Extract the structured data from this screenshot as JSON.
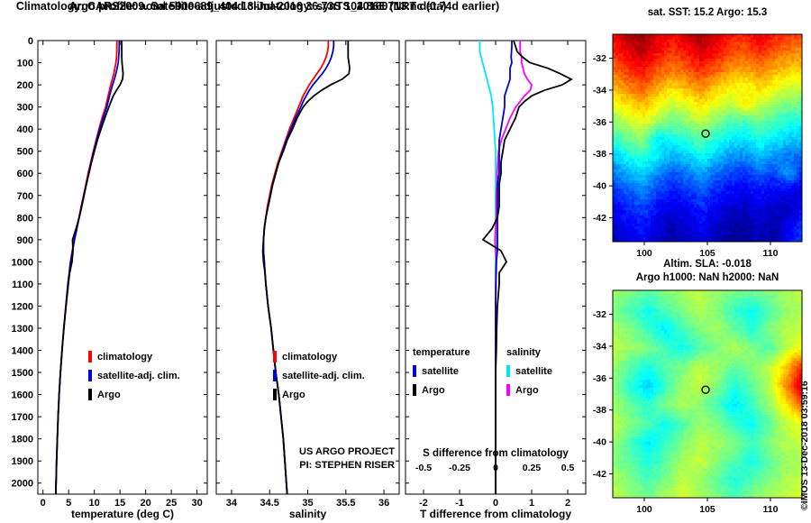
{
  "header": {
    "title_line1": "Argo profile: aoml 5900689_404 13-Jul-2016 36.73S 104.86E (NRT data)",
    "title_line2": "Climatology: CARS2009. Satellite-adjusted climatology: synTS_20160713.nc (0.74d earlier)"
  },
  "footer": {
    "copyright": "©IMOS 13-Dec-2018 03:59:16"
  },
  "chart_data": [
    {
      "id": "temperature_profile",
      "type": "line",
      "xlabel": "temperature (deg C)",
      "xlim": [
        -1,
        32
      ],
      "xticks": [
        0,
        5,
        10,
        15,
        20,
        25,
        30
      ],
      "ylim": [
        0,
        2050
      ],
      "yticks": [
        0,
        100,
        200,
        300,
        400,
        500,
        600,
        700,
        800,
        900,
        1000,
        1100,
        1200,
        1300,
        1400,
        1500,
        1600,
        1700,
        1800,
        1900,
        2000
      ],
      "show_ylabels": true,
      "depths": [
        0,
        25,
        50,
        75,
        100,
        125,
        150,
        175,
        200,
        225,
        250,
        275,
        300,
        350,
        400,
        450,
        500,
        550,
        600,
        650,
        700,
        750,
        800,
        850,
        900,
        950,
        1000,
        1050,
        1100,
        1200,
        1300,
        1400,
        1500,
        1600,
        1700,
        1800,
        1900,
        2000,
        2050
      ],
      "series": [
        {
          "name": "climatology",
          "color": "#ff0000",
          "values": [
            14.4,
            14.4,
            14.38,
            14.32,
            14.2,
            14.0,
            13.8,
            13.5,
            13.2,
            12.95,
            12.7,
            12.45,
            12.2,
            11.5,
            10.9,
            10.35,
            9.8,
            9.3,
            8.8,
            8.35,
            7.9,
            7.45,
            7.0,
            6.55,
            6.1,
            5.7,
            5.35,
            5.1,
            4.85,
            4.45,
            4.05,
            3.7,
            3.4,
            3.15,
            2.95,
            2.8,
            2.65,
            2.55,
            2.5
          ]
        },
        {
          "name": "satellite-adj. clim.",
          "color": "#0000dd",
          "values": [
            14.85,
            14.85,
            14.82,
            14.75,
            14.65,
            14.45,
            14.2,
            13.9,
            13.55,
            13.25,
            12.95,
            12.7,
            12.45,
            11.7,
            11.05,
            10.45,
            9.9,
            9.4,
            8.9,
            8.45,
            7.95,
            7.5,
            7.05,
            6.6,
            6.15,
            5.75,
            5.38,
            5.12,
            4.87,
            4.46,
            4.06,
            3.71,
            3.4,
            3.15,
            2.95,
            2.8,
            2.65,
            2.55,
            2.5
          ]
        },
        {
          "name": "Argo",
          "color": "#000000",
          "values": [
            15.3,
            15.35,
            15.35,
            15.35,
            15.4,
            15.5,
            15.6,
            15.5,
            15.0,
            14.3,
            13.7,
            13.25,
            12.85,
            12.05,
            11.3,
            10.6,
            10.0,
            9.45,
            8.95,
            8.45,
            8.0,
            7.55,
            7.05,
            6.45,
            5.75,
            5.85,
            5.65,
            5.2,
            4.95,
            4.5,
            4.08,
            3.72,
            3.4,
            3.15,
            2.95,
            2.8,
            2.65,
            2.55,
            2.5
          ]
        }
      ],
      "legend": [
        "climatology",
        "satellite-adj. clim.",
        "Argo"
      ]
    },
    {
      "id": "salinity_profile",
      "type": "line",
      "xlabel": "salinity",
      "xlim": [
        33.8,
        36.2
      ],
      "xticks": [
        34,
        34.5,
        35,
        35.5,
        36
      ],
      "ylim": [
        0,
        2050
      ],
      "yticks": [
        0,
        100,
        200,
        300,
        400,
        500,
        600,
        700,
        800,
        900,
        1000,
        1100,
        1200,
        1300,
        1400,
        1500,
        1600,
        1700,
        1800,
        1900,
        2000
      ],
      "show_ylabels": false,
      "note1": "US ARGO PROJECT",
      "note2": "PI: STEPHEN RISER",
      "depths": [
        0,
        25,
        50,
        75,
        100,
        125,
        150,
        175,
        200,
        225,
        250,
        275,
        300,
        350,
        400,
        450,
        500,
        550,
        600,
        650,
        700,
        750,
        800,
        850,
        900,
        950,
        1000,
        1050,
        1100,
        1200,
        1300,
        1400,
        1500,
        1600,
        1700,
        1800,
        1900,
        2000,
        2050
      ],
      "series": [
        {
          "name": "climatology",
          "color": "#ff0000",
          "values": [
            35.27,
            35.27,
            35.26,
            35.24,
            35.21,
            35.17,
            35.12,
            35.07,
            35.02,
            34.98,
            34.94,
            34.91,
            34.88,
            34.82,
            34.76,
            34.71,
            34.66,
            34.61,
            34.57,
            34.53,
            34.5,
            34.47,
            34.45,
            34.43,
            34.42,
            34.42,
            34.43,
            34.44,
            34.45,
            34.48,
            34.52,
            34.55,
            34.58,
            34.62,
            34.65,
            34.68,
            34.7,
            34.72,
            34.73
          ]
        },
        {
          "name": "satellite-adj. clim.",
          "color": "#0000dd",
          "values": [
            35.34,
            35.34,
            35.33,
            35.31,
            35.28,
            35.24,
            35.19,
            35.13,
            35.07,
            35.02,
            34.98,
            34.94,
            34.91,
            34.84,
            34.78,
            34.72,
            34.67,
            34.62,
            34.58,
            34.54,
            34.51,
            34.48,
            34.45,
            34.43,
            34.42,
            34.42,
            34.43,
            34.44,
            34.45,
            34.48,
            34.52,
            34.55,
            34.58,
            34.62,
            34.65,
            34.68,
            34.7,
            34.72,
            34.73
          ]
        },
        {
          "name": "Argo",
          "color": "#000000",
          "values": [
            35.53,
            35.53,
            35.53,
            35.53,
            35.54,
            35.55,
            35.54,
            35.45,
            35.3,
            35.18,
            35.08,
            35.0,
            34.94,
            34.86,
            34.8,
            34.73,
            34.68,
            34.62,
            34.58,
            34.54,
            34.51,
            34.48,
            34.45,
            34.43,
            34.42,
            34.41,
            34.42,
            34.44,
            34.45,
            34.48,
            34.52,
            34.55,
            34.58,
            34.62,
            34.65,
            34.68,
            34.7,
            34.72,
            34.73
          ]
        }
      ],
      "legend": [
        "climatology",
        "satellite-adj. clim.",
        "Argo"
      ]
    },
    {
      "id": "difference_profile",
      "type": "line",
      "xlabel": "T difference from climatology",
      "xlim": [
        -2.5,
        2.5
      ],
      "xticks": [
        -2,
        -1,
        0,
        1,
        2
      ],
      "ylim": [
        0,
        2050
      ],
      "yticks": [
        0,
        100,
        200,
        300,
        400,
        500,
        600,
        700,
        800,
        900,
        1000,
        1100,
        1200,
        1300,
        1400,
        1500,
        1600,
        1700,
        1800,
        1900,
        2000
      ],
      "show_ylabels": false,
      "secondary": {
        "label": "S difference from climatology",
        "ticks": [
          -0.5,
          -0.25,
          0,
          0.25,
          0.5
        ],
        "scale": 4
      },
      "depths": [
        0,
        25,
        50,
        75,
        100,
        125,
        150,
        175,
        200,
        225,
        250,
        275,
        300,
        350,
        400,
        450,
        500,
        550,
        600,
        650,
        700,
        750,
        800,
        850,
        900,
        950,
        1000,
        1050,
        1100,
        1200,
        1300,
        1400,
        1500,
        1600,
        1700,
        1800,
        1900,
        2000,
        2050
      ],
      "series": [
        {
          "name": "salinity satellite",
          "color": "#00e5ff",
          "xscale": 4,
          "values": [
            -0.11,
            -0.11,
            -0.11,
            -0.1,
            -0.09,
            -0.08,
            -0.07,
            -0.06,
            -0.05,
            -0.04,
            -0.03,
            -0.025,
            -0.02,
            -0.015,
            -0.01,
            -0.005,
            0,
            0,
            0,
            0,
            0,
            0,
            0,
            0,
            0,
            0,
            0,
            0,
            0,
            0,
            0,
            0,
            0,
            0,
            0,
            0,
            0,
            0,
            0
          ]
        },
        {
          "name": "salinity Argo",
          "color": "#ff00ff",
          "xscale": 4,
          "values": [
            0.17,
            0.17,
            0.17,
            0.18,
            0.18,
            0.19,
            0.2,
            0.22,
            0.25,
            0.24,
            0.2,
            0.17,
            0.14,
            0.1,
            0.07,
            0.04,
            0.02,
            0.015,
            0.01,
            0.01,
            0.005,
            0.005,
            0.005,
            0,
            -0.005,
            0,
            0.005,
            0.005,
            0,
            0,
            0,
            0,
            0,
            0,
            0,
            0,
            0,
            0,
            0
          ]
        },
        {
          "name": "temperature satellite",
          "color": "#0000dd",
          "xscale": 1,
          "values": [
            0.45,
            0.45,
            0.44,
            0.43,
            0.45,
            0.4,
            0.4,
            0.4,
            0.35,
            0.3,
            0.25,
            0.25,
            0.25,
            0.2,
            0.15,
            0.1,
            0.1,
            0.1,
            0.1,
            0.05,
            0.05,
            0.05,
            0.05,
            0.05,
            0.05,
            0.05,
            0.02,
            0.01,
            0.01,
            0,
            0,
            0,
            0,
            0,
            0,
            0,
            0,
            0,
            0
          ]
        },
        {
          "name": "temperature Argo",
          "color": "#000000",
          "xscale": 1,
          "values": [
            0.5,
            0.55,
            0.6,
            0.75,
            0.95,
            1.45,
            1.8,
            2.1,
            1.85,
            1.35,
            1.0,
            0.8,
            0.65,
            0.55,
            0.4,
            0.25,
            0.2,
            0.15,
            0.15,
            0.1,
            0.1,
            0.1,
            0.05,
            -0.1,
            -0.35,
            0.15,
            0.3,
            0.1,
            0.1,
            0.05,
            0.03,
            0.02,
            0,
            0,
            0,
            0,
            0,
            0,
            0
          ]
        }
      ],
      "legend": {
        "col1": {
          "header": "temperature",
          "items": [
            "satellite",
            "Argo"
          ]
        },
        "col2": {
          "header": "salinity",
          "items": [
            "satellite",
            "Argo"
          ]
        }
      }
    },
    {
      "id": "sst_map",
      "type": "heatmap",
      "title": "sat. SST: 15.2 Argo: 15.3",
      "xlim": [
        97.5,
        112.5
      ],
      "xticks": [
        100,
        105,
        110
      ],
      "ylim": [
        -30.5,
        -43.5
      ],
      "yticks": [
        -32,
        -34,
        -36,
        -38,
        -40,
        -42
      ],
      "vmin": 10.8,
      "vmax": 19.6,
      "noise": 0.45,
      "marker": {
        "lon": 104.86,
        "lat": -36.73
      },
      "grid": [
        [
          18.6,
          19.2,
          19.4,
          18.8,
          18.5,
          18.9,
          19.3,
          18.9,
          18.4,
          18.2,
          18.7,
          18.3,
          18.0,
          17.8
        ],
        [
          18.2,
          18.7,
          19.0,
          18.4,
          18.0,
          18.3,
          18.8,
          18.4,
          17.9,
          17.7,
          18.1,
          17.7,
          17.4,
          17.3
        ],
        [
          17.6,
          18.1,
          18.4,
          17.8,
          17.4,
          17.7,
          18.1,
          17.7,
          17.2,
          17.0,
          17.4,
          17.0,
          16.7,
          16.6
        ],
        [
          16.9,
          17.4,
          17.7,
          17.1,
          16.6,
          16.9,
          17.3,
          16.8,
          16.4,
          16.2,
          16.6,
          16.2,
          15.9,
          15.8
        ],
        [
          16.1,
          16.6,
          16.9,
          16.3,
          15.8,
          16.1,
          16.5,
          16.0,
          15.6,
          16.4,
          15.8,
          15.4,
          15.1,
          15.0
        ],
        [
          15.3,
          15.8,
          16.1,
          15.5,
          15.0,
          15.3,
          15.7,
          15.2,
          14.8,
          14.6,
          15.0,
          14.7,
          14.4,
          14.3
        ],
        [
          14.5,
          15.0,
          15.3,
          13.9,
          14.2,
          14.5,
          14.9,
          14.4,
          14.0,
          13.9,
          14.3,
          14.0,
          13.7,
          13.6
        ],
        [
          13.7,
          14.2,
          14.5,
          13.9,
          13.4,
          13.7,
          14.1,
          13.6,
          13.2,
          13.1,
          13.5,
          13.2,
          12.9,
          12.8
        ],
        [
          12.9,
          13.4,
          13.7,
          13.1,
          12.6,
          12.9,
          13.3,
          12.8,
          12.5,
          12.3,
          12.7,
          12.4,
          13.3,
          12.1
        ],
        [
          12.3,
          12.7,
          13.0,
          12.4,
          12.1,
          12.3,
          12.7,
          12.2,
          11.9,
          11.8,
          12.1,
          11.8,
          11.7,
          11.6
        ],
        [
          11.8,
          12.2,
          12.5,
          11.9,
          11.6,
          11.8,
          12.2,
          11.7,
          11.5,
          11.4,
          11.7,
          11.4,
          11.3,
          12.0
        ],
        [
          11.5,
          11.9,
          12.1,
          11.6,
          11.3,
          11.5,
          11.9,
          11.4,
          11.2,
          11.1,
          11.4,
          11.2,
          11.8,
          12.3
        ],
        [
          11.3,
          11.7,
          11.9,
          11.4,
          11.1,
          11.3,
          11.6,
          11.2,
          11.0,
          11.0,
          11.2,
          11.1,
          12.0,
          12.5
        ]
      ]
    },
    {
      "id": "sla_map",
      "type": "heatmap",
      "title1": "Altim. SLA: -0.018",
      "title2": "Argo h1000: NaN h2000: NaN",
      "xlim": [
        97.5,
        112.5
      ],
      "xticks": [
        100,
        105,
        110
      ],
      "ylim": [
        -30.5,
        -43.5
      ],
      "yticks": [
        -32,
        -34,
        -36,
        -38,
        -40,
        -42
      ],
      "vmin": -0.42,
      "vmax": 0.42,
      "noise": 0.03,
      "marker": {
        "lon": 104.86,
        "lat": -36.73
      },
      "grid": [
        [
          0.02,
          0.0,
          -0.03,
          0.0,
          0.03,
          0.05,
          0.02,
          0.0,
          -0.02,
          0.0,
          0.03,
          0.05
        ],
        [
          0.0,
          -0.05,
          -0.1,
          -0.04,
          0.0,
          0.04,
          0.0,
          -0.06,
          -0.1,
          -0.04,
          0.02,
          0.04
        ],
        [
          0.03,
          0.0,
          -0.06,
          -0.12,
          -0.05,
          0.0,
          0.03,
          -0.02,
          -0.08,
          0.0,
          0.04,
          0.06
        ],
        [
          0.05,
          0.02,
          0.0,
          -0.05,
          -0.1,
          -0.04,
          0.0,
          0.04,
          0.0,
          -0.05,
          0.05,
          0.1
        ],
        [
          0.02,
          -0.04,
          -0.09,
          -0.03,
          0.0,
          0.05,
          0.02,
          -0.03,
          0.0,
          0.05,
          0.15,
          0.3
        ],
        [
          0.0,
          -0.08,
          -0.14,
          -0.06,
          0.02,
          0.06,
          0.0,
          -0.08,
          -0.03,
          0.04,
          0.2,
          0.38
        ],
        [
          0.03,
          -0.03,
          -0.07,
          0.0,
          0.04,
          0.0,
          -0.05,
          -0.12,
          -0.06,
          0.02,
          0.12,
          0.25
        ],
        [
          0.05,
          0.0,
          -0.04,
          -0.1,
          -0.04,
          0.02,
          0.0,
          -0.06,
          -0.1,
          -0.03,
          0.05,
          0.1
        ],
        [
          0.02,
          -0.05,
          -0.12,
          -0.06,
          0.0,
          0.05,
          0.03,
          0.0,
          -0.05,
          0.0,
          0.04,
          0.06
        ],
        [
          0.0,
          -0.03,
          -0.08,
          -0.03,
          0.03,
          0.06,
          0.0,
          -0.04,
          -0.09,
          -0.03,
          0.02,
          0.04
        ],
        [
          0.03,
          0.0,
          -0.05,
          0.0,
          0.05,
          0.02,
          -0.03,
          -0.08,
          -0.04,
          0.0,
          0.04,
          0.06
        ],
        [
          0.05,
          0.02,
          0.0,
          0.04,
          0.07,
          0.04,
          0.0,
          -0.04,
          0.0,
          0.04,
          0.06,
          0.08
        ]
      ]
    }
  ]
}
